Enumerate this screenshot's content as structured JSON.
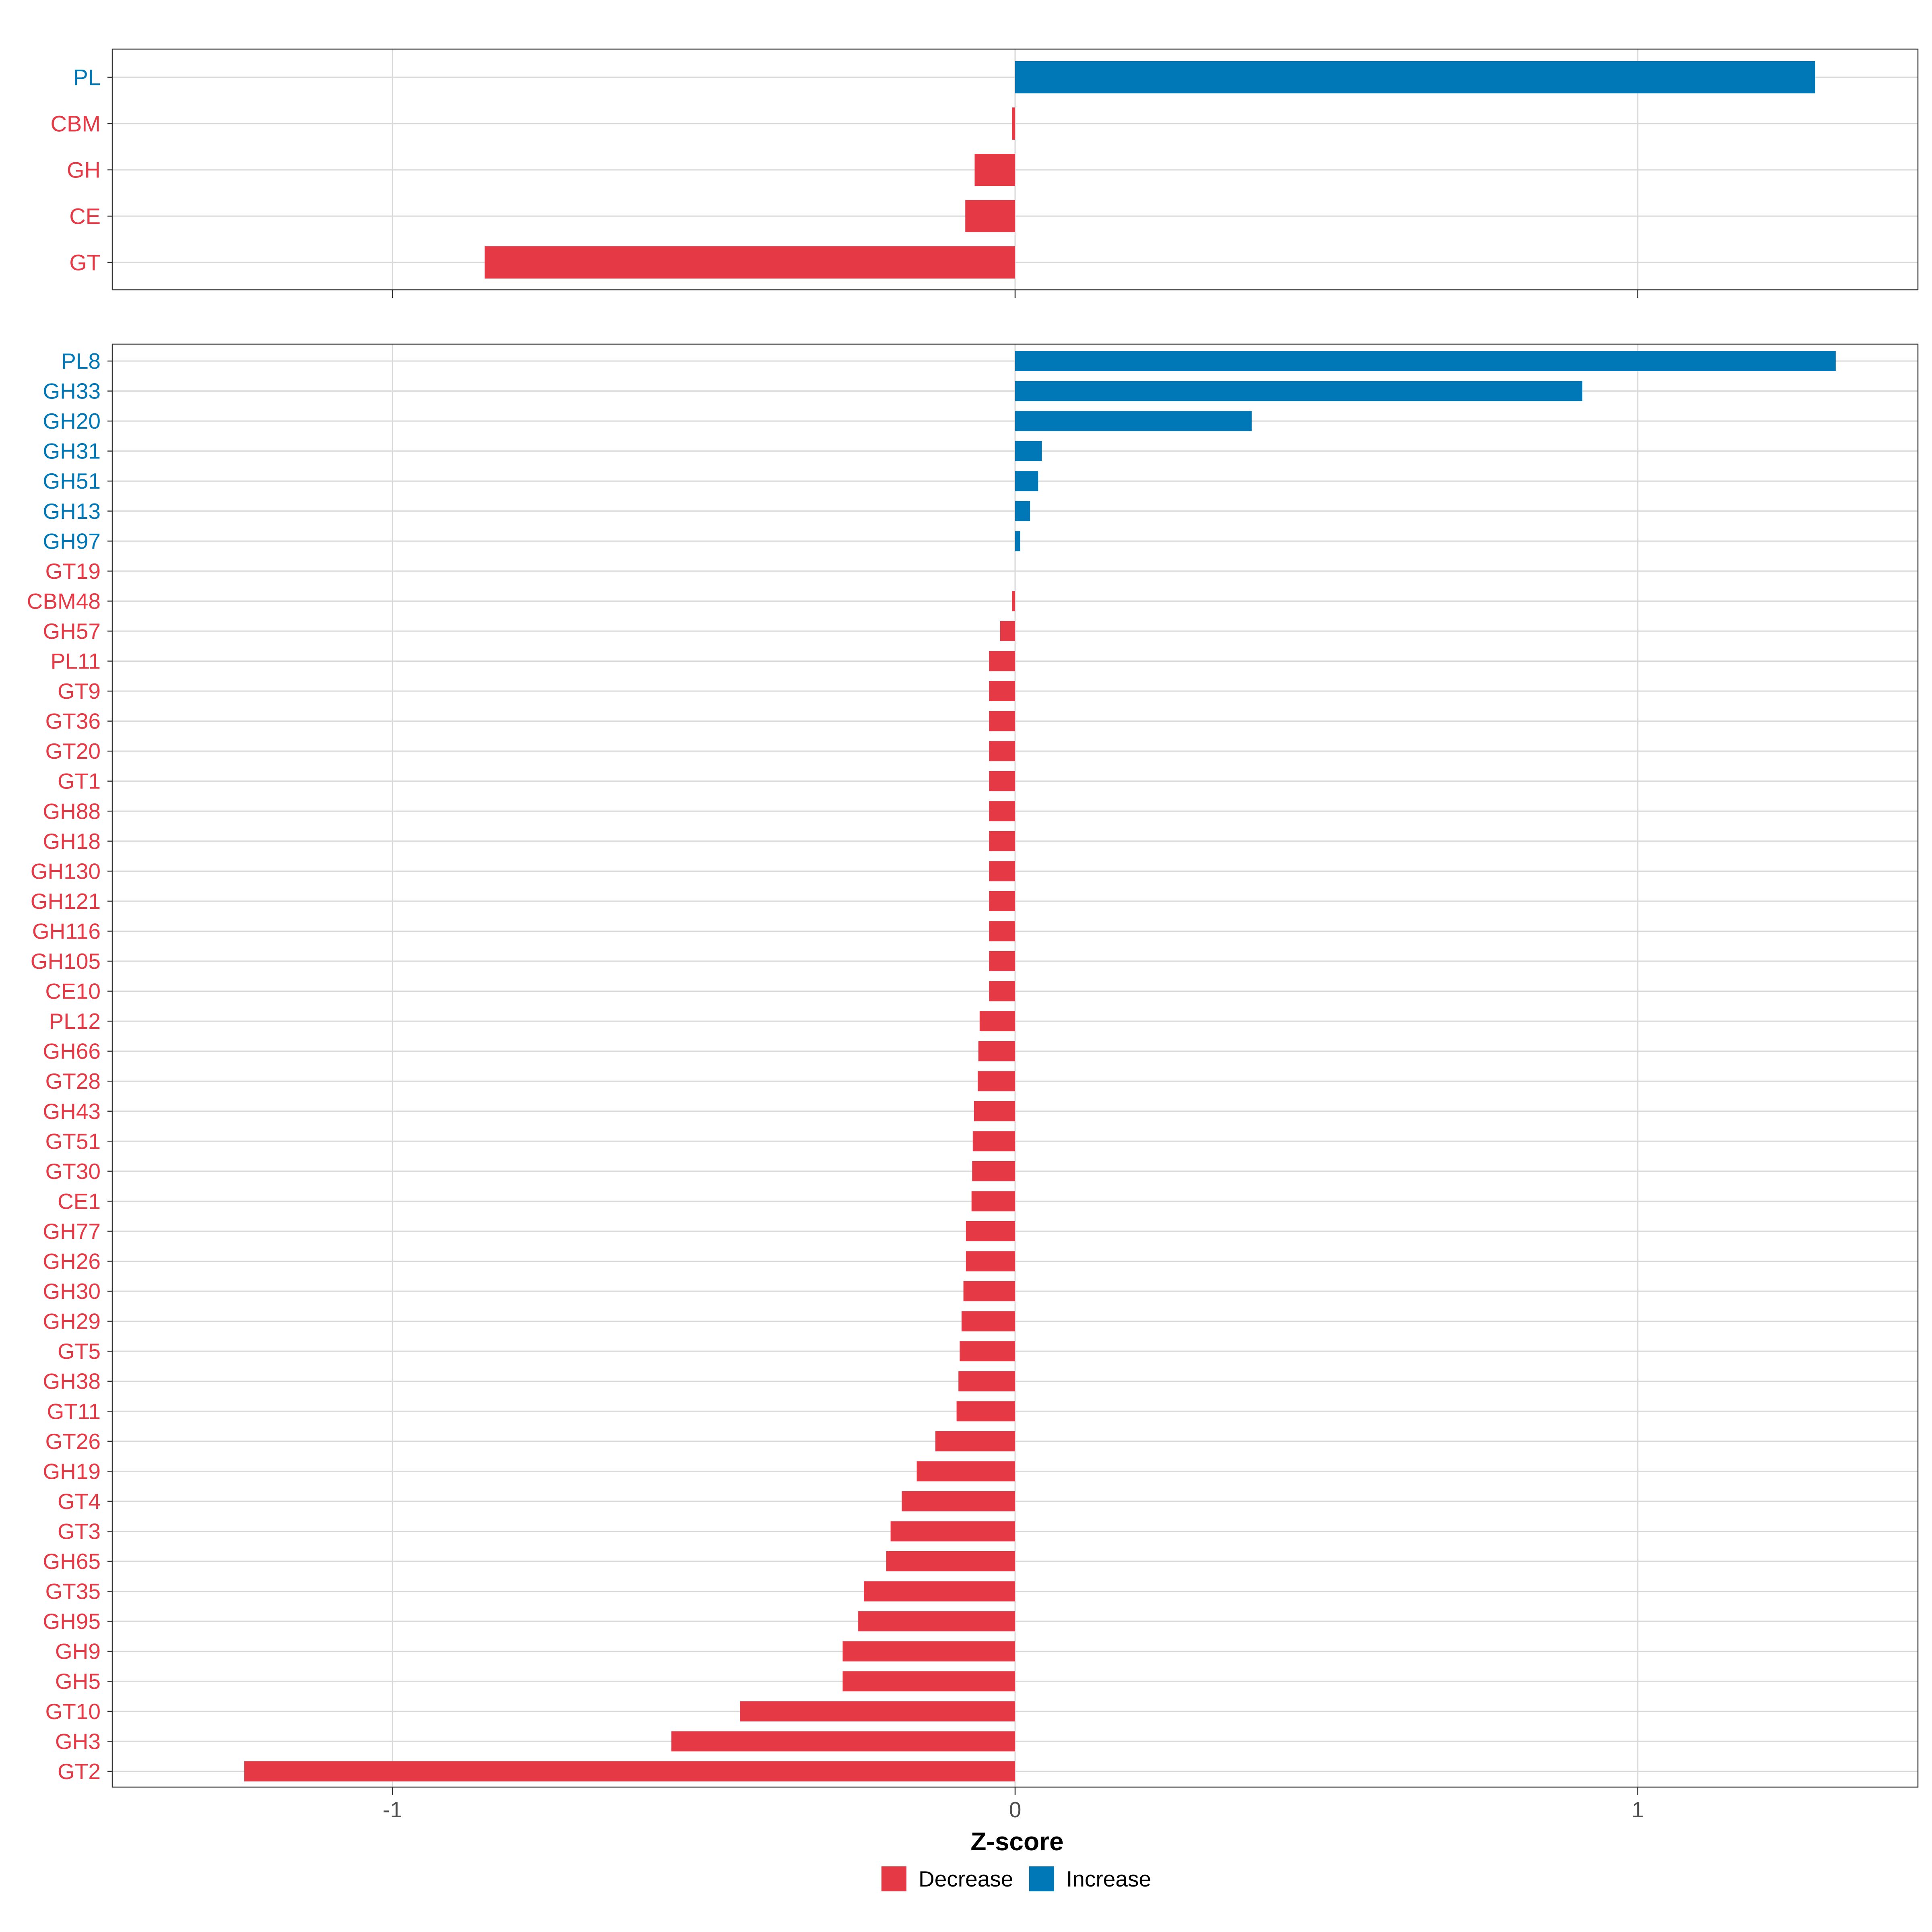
{
  "colors": {
    "decrease": "#E63946",
    "increase": "#0077B6",
    "grid": "#D9D9D9",
    "panel_border": "#333333",
    "tick_text": "#4D4D4D",
    "axis_title": "#000000"
  },
  "chart_data": [
    {
      "type": "bar",
      "orientation": "horizontal",
      "panel": "top",
      "xlim": [
        -1.45,
        1.45
      ],
      "xticks": [
        -1,
        0,
        1
      ],
      "show_tick_labels": false,
      "categories": [
        "PL",
        "CBM",
        "GH",
        "CE",
        "GT"
      ],
      "values": [
        1.285,
        -0.005,
        -0.065,
        -0.08,
        -0.852
      ]
    },
    {
      "type": "bar",
      "orientation": "horizontal",
      "panel": "bottom",
      "xlim": [
        -1.45,
        1.45
      ],
      "xticks": [
        -1,
        0,
        1
      ],
      "tick_labels": [
        "-1",
        "0",
        "1"
      ],
      "show_tick_labels": true,
      "xlabel": "Z-score",
      "categories": [
        "PL8",
        "GH33",
        "GH20",
        "GH31",
        "GH51",
        "GH13",
        "GH97",
        "GT19",
        "CBM48",
        "GH57",
        "PL11",
        "GT9",
        "GT36",
        "GT20",
        "GT1",
        "GH88",
        "GH18",
        "GH130",
        "GH121",
        "GH116",
        "GH105",
        "CE10",
        "PL12",
        "GH66",
        "GT28",
        "GH43",
        "GT51",
        "GT30",
        "CE1",
        "GH77",
        "GH26",
        "GH30",
        "GH29",
        "GT5",
        "GH38",
        "GT11",
        "GT26",
        "GH19",
        "GT4",
        "GT3",
        "GH65",
        "GT35",
        "GH95",
        "GH9",
        "GH5",
        "GT10",
        "GH3",
        "GT2"
      ],
      "values": [
        1.318,
        0.911,
        0.38,
        0.043,
        0.037,
        0.024,
        0.008,
        0.0,
        -0.005,
        -0.024,
        -0.042,
        -0.042,
        -0.042,
        -0.042,
        -0.042,
        -0.042,
        -0.042,
        -0.042,
        -0.042,
        -0.042,
        -0.042,
        -0.042,
        -0.057,
        -0.059,
        -0.06,
        -0.066,
        -0.068,
        -0.069,
        -0.07,
        -0.079,
        -0.079,
        -0.083,
        -0.086,
        -0.089,
        -0.091,
        -0.094,
        -0.128,
        -0.158,
        -0.182,
        -0.2,
        -0.207,
        -0.243,
        -0.252,
        -0.277,
        -0.277,
        -0.442,
        -0.552,
        -1.238
      ]
    }
  ],
  "legend": {
    "items": [
      {
        "label": "Decrease",
        "color_key": "decrease"
      },
      {
        "label": "Increase",
        "color_key": "increase"
      }
    ]
  }
}
